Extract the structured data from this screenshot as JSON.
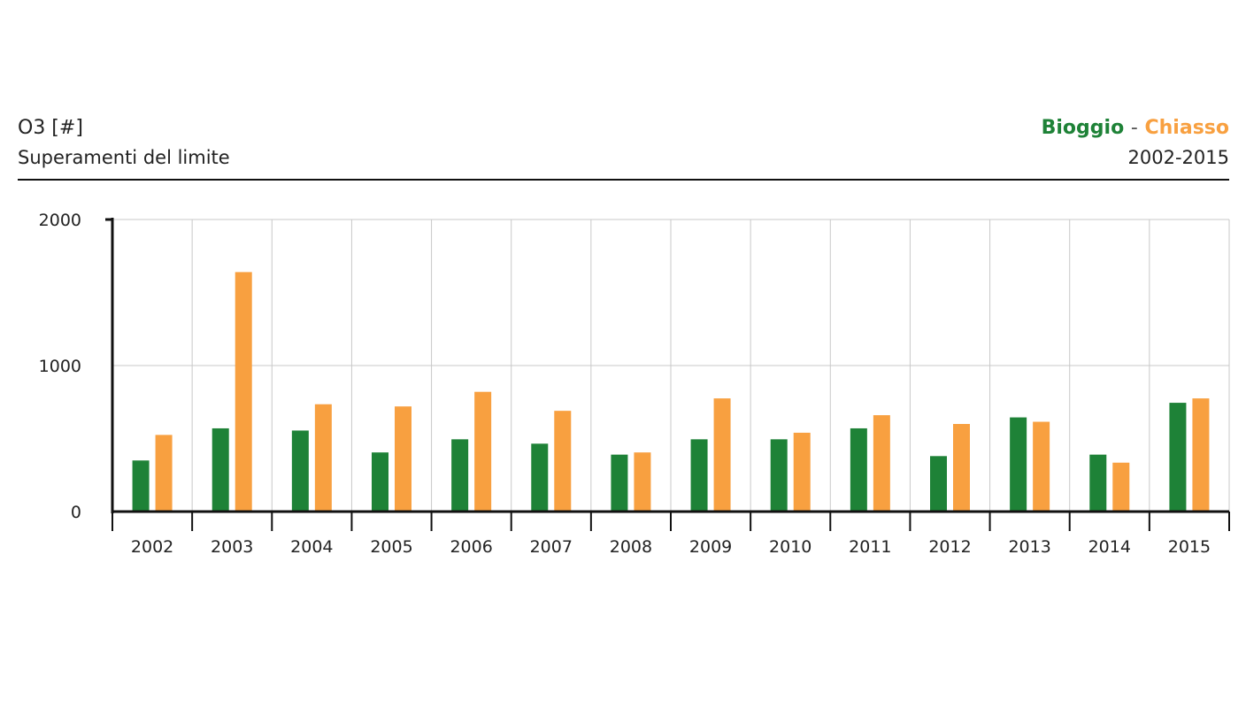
{
  "header": {
    "title": "O3 [#]",
    "subtitle": "Superamenti del limite",
    "legend_series_1": "Bioggio",
    "legend_separator": "-",
    "legend_series_2": "Chiasso",
    "period": "2002-2015"
  },
  "colors": {
    "bioggio": "#1e8237",
    "chiasso": "#f8a040"
  },
  "chart_data": {
    "type": "bar",
    "categories": [
      "2002",
      "2003",
      "2004",
      "2005",
      "2006",
      "2007",
      "2008",
      "2009",
      "2010",
      "2011",
      "2012",
      "2013",
      "2014",
      "2015"
    ],
    "series": [
      {
        "name": "Bioggio",
        "values": [
          350,
          570,
          555,
          405,
          495,
          465,
          390,
          495,
          495,
          570,
          380,
          645,
          390,
          745
        ]
      },
      {
        "name": "Chiasso",
        "values": [
          525,
          1640,
          735,
          720,
          820,
          690,
          405,
          775,
          540,
          660,
          600,
          615,
          335,
          775
        ]
      }
    ],
    "yticks": [
      0,
      1000,
      2000
    ],
    "ylim": [
      0,
      2000
    ],
    "grid": true,
    "legend": "top-right"
  }
}
